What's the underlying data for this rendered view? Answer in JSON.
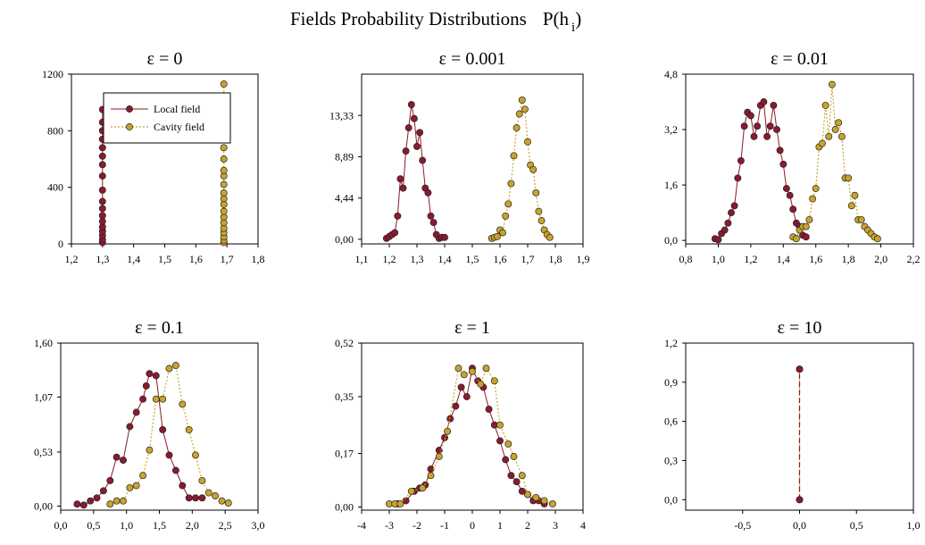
{
  "title_main": "Fields  Probability Distributions",
  "title_formula": "P(h",
  "title_sub": "i",
  "title_close": ")",
  "colors": {
    "local": "#8b1a2e",
    "cavity": "#c9a42a",
    "local_line": "#8b1a2e",
    "cavity_line": "#c8a82a"
  },
  "chart_data": [
    {
      "type": "scatter",
      "title": "ε = 0",
      "xlim": [
        1.2,
        1.8
      ],
      "ylim": [
        0,
        1200
      ],
      "xticks": [
        "1,2",
        "1,3",
        "1,4",
        "1,5",
        "1,6",
        "1,7",
        "1,8"
      ],
      "xtick_values": [
        1.2,
        1.3,
        1.4,
        1.5,
        1.6,
        1.7,
        1.8
      ],
      "yticks": [
        "0",
        "400",
        "800",
        "1200"
      ],
      "ytick_values": [
        0,
        400,
        800,
        1200
      ],
      "legend": {
        "placement": "top-left",
        "entries": [
          "Local field",
          "Cavity field"
        ]
      },
      "series": [
        {
          "name": "Local field",
          "x": [
            1.3,
            1.3,
            1.3,
            1.3,
            1.3,
            1.3,
            1.3,
            1.3,
            1.3,
            1.3,
            1.3,
            1.3,
            1.3,
            1.3,
            1.3,
            1.3,
            1.3,
            1.3
          ],
          "y": [
            10,
            30,
            60,
            90,
            120,
            160,
            200,
            250,
            300,
            380,
            480,
            560,
            620,
            680,
            740,
            800,
            860,
            950
          ]
        },
        {
          "name": "Cavity field",
          "x": [
            1.69,
            1.69,
            1.69,
            1.69,
            1.69,
            1.69,
            1.69,
            1.69,
            1.69,
            1.69,
            1.69,
            1.69,
            1.69,
            1.69,
            1.69,
            1.69,
            1.69,
            1.69,
            1.69,
            1.69
          ],
          "y": [
            10,
            25,
            50,
            80,
            110,
            150,
            190,
            230,
            280,
            320,
            360,
            420,
            480,
            520,
            600,
            680,
            750,
            870,
            970,
            1130
          ]
        }
      ]
    },
    {
      "type": "line",
      "title": "ε = 0.001",
      "xlim": [
        1.1,
        1.9
      ],
      "ylim": [
        -0.5,
        17.78
      ],
      "xticks": [
        "1,1",
        "1,2",
        "1,3",
        "1,4",
        "1,5",
        "1,6",
        "1,7",
        "1,8",
        "1,9"
      ],
      "xtick_values": [
        1.1,
        1.2,
        1.3,
        1.4,
        1.5,
        1.6,
        1.7,
        1.8,
        1.9
      ],
      "yticks": [
        "0,00",
        "4,44",
        "8,89",
        "13,33"
      ],
      "ytick_values": [
        0,
        4.44,
        8.89,
        13.33
      ],
      "series": [
        {
          "name": "Local field",
          "x": [
            1.19,
            1.2,
            1.21,
            1.22,
            1.23,
            1.24,
            1.25,
            1.26,
            1.27,
            1.28,
            1.29,
            1.3,
            1.31,
            1.32,
            1.33,
            1.34,
            1.35,
            1.36,
            1.37,
            1.38,
            1.39,
            1.4
          ],
          "y": [
            0.1,
            0.3,
            0.5,
            0.7,
            2.5,
            6.5,
            5.5,
            9.5,
            12.0,
            14.5,
            13.0,
            10.0,
            11.5,
            8.5,
            5.5,
            5.0,
            2.5,
            1.8,
            0.5,
            0.1,
            0.2,
            0.2
          ]
        },
        {
          "name": "Cavity field",
          "x": [
            1.57,
            1.58,
            1.59,
            1.6,
            1.61,
            1.62,
            1.63,
            1.64,
            1.65,
            1.66,
            1.67,
            1.68,
            1.69,
            1.7,
            1.71,
            1.72,
            1.73,
            1.74,
            1.75,
            1.76,
            1.77,
            1.78
          ],
          "y": [
            0.1,
            0.2,
            0.3,
            1.0,
            0.7,
            2.5,
            3.8,
            6.0,
            9.0,
            12.0,
            13.5,
            15.0,
            14.0,
            10.5,
            8.0,
            7.5,
            5.0,
            3.0,
            2.0,
            1.0,
            0.5,
            0.2
          ]
        }
      ]
    },
    {
      "type": "line",
      "title": "ε = 0.01",
      "xlim": [
        0.8,
        2.2
      ],
      "ylim": [
        -0.1,
        4.8
      ],
      "xticks": [
        "0,8",
        "1,0",
        "1,2",
        "1,4",
        "1,6",
        "1,8",
        "2,0",
        "2,2"
      ],
      "xtick_values": [
        0.8,
        1.0,
        1.2,
        1.4,
        1.6,
        1.8,
        2.0,
        2.2
      ],
      "yticks": [
        "0,0",
        "1,6",
        "3,2",
        "4,8"
      ],
      "ytick_values": [
        0,
        1.6,
        3.2,
        4.8
      ],
      "series": [
        {
          "name": "Local field",
          "x": [
            0.98,
            1.0,
            1.02,
            1.04,
            1.06,
            1.08,
            1.1,
            1.12,
            1.14,
            1.16,
            1.18,
            1.2,
            1.22,
            1.24,
            1.26,
            1.28,
            1.3,
            1.32,
            1.34,
            1.36,
            1.38,
            1.4,
            1.42,
            1.44,
            1.46,
            1.48,
            1.5,
            1.52,
            1.54
          ],
          "y": [
            0.05,
            0.02,
            0.2,
            0.3,
            0.5,
            0.8,
            1.0,
            1.8,
            2.3,
            3.3,
            3.7,
            3.6,
            3.0,
            3.3,
            3.9,
            4.0,
            3.0,
            3.3,
            3.9,
            3.2,
            2.6,
            2.2,
            1.5,
            1.3,
            0.9,
            0.5,
            0.4,
            0.15,
            0.1
          ]
        },
        {
          "name": "Cavity field",
          "x": [
            1.46,
            1.48,
            1.5,
            1.52,
            1.54,
            1.56,
            1.58,
            1.6,
            1.62,
            1.64,
            1.66,
            1.68,
            1.7,
            1.72,
            1.74,
            1.76,
            1.78,
            1.8,
            1.82,
            1.84,
            1.86,
            1.88,
            1.9,
            1.92,
            1.94,
            1.96,
            1.98
          ],
          "y": [
            0.1,
            0.05,
            0.3,
            0.4,
            0.4,
            0.6,
            1.2,
            1.5,
            2.7,
            2.8,
            3.9,
            3.0,
            4.5,
            3.2,
            3.4,
            3.0,
            1.8,
            1.8,
            1.0,
            1.3,
            0.6,
            0.6,
            0.4,
            0.3,
            0.2,
            0.1,
            0.05
          ]
        }
      ]
    },
    {
      "type": "line",
      "title": "ε = 0.1",
      "xlim": [
        0.0,
        3.0
      ],
      "ylim": [
        -0.04,
        1.6
      ],
      "xticks": [
        "0,0",
        "0,5",
        "1,0",
        "1,5",
        "2,0",
        "2,5",
        "3,0"
      ],
      "xtick_values": [
        0,
        0.5,
        1.0,
        1.5,
        2.0,
        2.5,
        3.0
      ],
      "yticks": [
        "0,00",
        "0,53",
        "1,07",
        "1,60"
      ],
      "ytick_values": [
        0,
        0.53,
        1.07,
        1.6
      ],
      "series": [
        {
          "name": "Local field",
          "x": [
            0.25,
            0.35,
            0.45,
            0.55,
            0.65,
            0.75,
            0.85,
            0.95,
            1.05,
            1.15,
            1.25,
            1.3,
            1.35,
            1.45,
            1.55,
            1.65,
            1.75,
            1.85,
            1.95,
            2.05,
            2.15
          ],
          "y": [
            0.02,
            0.01,
            0.05,
            0.08,
            0.15,
            0.25,
            0.48,
            0.45,
            0.78,
            0.92,
            1.05,
            1.18,
            1.3,
            1.28,
            0.75,
            0.5,
            0.35,
            0.2,
            0.08,
            0.08,
            0.08
          ]
        },
        {
          "name": "Cavity field",
          "x": [
            0.75,
            0.85,
            0.95,
            1.05,
            1.15,
            1.25,
            1.35,
            1.45,
            1.55,
            1.65,
            1.75,
            1.85,
            1.95,
            2.05,
            2.15,
            2.25,
            2.35,
            2.45,
            2.55
          ],
          "y": [
            0.02,
            0.05,
            0.05,
            0.18,
            0.2,
            0.3,
            0.55,
            1.05,
            1.05,
            1.35,
            1.38,
            1.0,
            0.75,
            0.5,
            0.25,
            0.13,
            0.1,
            0.05,
            0.03
          ]
        }
      ]
    },
    {
      "type": "line",
      "title": "ε = 1",
      "xlim": [
        -4,
        4
      ],
      "ylim": [
        -0.01,
        0.52
      ],
      "xticks": [
        "-4",
        "-3",
        "-2",
        "-1",
        "0",
        "1",
        "2",
        "3",
        "4"
      ],
      "xtick_values": [
        -4,
        -3,
        -2,
        -1,
        0,
        1,
        2,
        3,
        4
      ],
      "yticks": [
        "0,00",
        "0,17",
        "0,35",
        "0,52"
      ],
      "ytick_values": [
        0,
        0.17,
        0.35,
        0.52
      ],
      "series": [
        {
          "name": "Local field",
          "x": [
            -2.7,
            -2.4,
            -2.1,
            -1.9,
            -1.7,
            -1.5,
            -1.2,
            -1.0,
            -0.8,
            -0.6,
            -0.4,
            -0.2,
            0.0,
            0.2,
            0.4,
            0.6,
            0.8,
            1.0,
            1.2,
            1.4,
            1.6,
            1.8,
            2.0,
            2.2,
            2.4,
            2.6
          ],
          "y": [
            0.01,
            0.02,
            0.05,
            0.06,
            0.07,
            0.12,
            0.18,
            0.22,
            0.28,
            0.32,
            0.38,
            0.35,
            0.44,
            0.4,
            0.38,
            0.31,
            0.26,
            0.21,
            0.15,
            0.1,
            0.08,
            0.05,
            0.04,
            0.02,
            0.02,
            0.01
          ]
        },
        {
          "name": "Cavity field",
          "x": [
            -3.0,
            -2.8,
            -2.6,
            -2.2,
            -1.8,
            -1.5,
            -1.2,
            -0.9,
            -0.5,
            -0.3,
            0.0,
            0.3,
            0.5,
            0.8,
            1.0,
            1.3,
            1.5,
            1.8,
            2.0,
            2.3,
            2.6,
            2.9
          ],
          "y": [
            0.01,
            0.01,
            0.01,
            0.05,
            0.06,
            0.1,
            0.16,
            0.24,
            0.44,
            0.42,
            0.43,
            0.39,
            0.44,
            0.4,
            0.26,
            0.2,
            0.16,
            0.1,
            0.04,
            0.03,
            0.02,
            0.01
          ]
        }
      ]
    },
    {
      "type": "line",
      "title": "ε = 10",
      "xlim": [
        -1.0,
        1.0
      ],
      "ylim": [
        -0.08,
        1.2
      ],
      "xticks": [
        "-0,5",
        "0,0",
        "0,5",
        "1,0"
      ],
      "xtick_values": [
        -0.5,
        0,
        0.5,
        1.0
      ],
      "yticks": [
        "0,0",
        "0,3",
        "0,6",
        "0,9",
        "1,2"
      ],
      "ytick_values": [
        0,
        0.3,
        0.6,
        0.9,
        1.2
      ],
      "series": [
        {
          "name": "Local field",
          "x": [
            0.0,
            0.0
          ],
          "y": [
            0.0,
            1.0
          ]
        },
        {
          "name": "Cavity field",
          "x": [
            0.0,
            0.0
          ],
          "y": [
            0.0,
            1.0
          ]
        }
      ]
    }
  ]
}
